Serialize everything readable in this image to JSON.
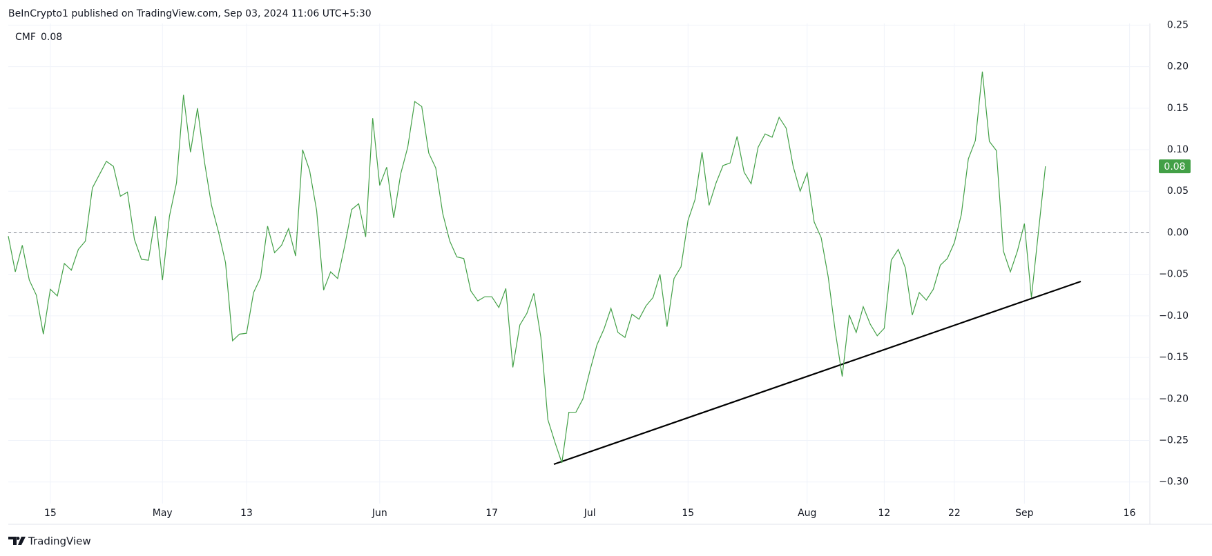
{
  "chart_data": {
    "type": "line",
    "title": "BeInCrypto1 published on TradingView.com, Sep 03, 2024 11:06 UTC+5:30",
    "watermark": "TradingView",
    "categories": [
      null,
      null,
      null,
      null,
      null,
      null,
      "15",
      null,
      null,
      null,
      null,
      null,
      null,
      null,
      null,
      null,
      null,
      null,
      null,
      null,
      null,
      null,
      "May",
      null,
      null,
      null,
      null,
      null,
      null,
      null,
      null,
      null,
      null,
      null,
      "13",
      null,
      null,
      null,
      null,
      null,
      null,
      null,
      null,
      null,
      null,
      null,
      null,
      null,
      null,
      null,
      null,
      null,
      null,
      "Jun",
      null,
      null,
      null,
      null,
      null,
      null,
      null,
      null,
      null,
      null,
      null,
      null,
      null,
      null,
      null,
      "17",
      null,
      null,
      null,
      null,
      null,
      null,
      null,
      null,
      null,
      null,
      null,
      null,
      null,
      "Jul",
      null,
      null,
      null,
      null,
      null,
      null,
      null,
      null,
      null,
      null,
      null,
      null,
      null,
      "15",
      null,
      null,
      null,
      null,
      null,
      null,
      null,
      null,
      null,
      null,
      null,
      null,
      null,
      null,
      null,
      null,
      "Aug",
      null,
      null,
      null,
      null,
      null,
      null,
      null,
      null,
      null,
      null,
      "12",
      null,
      null,
      null,
      null,
      null,
      null,
      null,
      null,
      null,
      "22",
      null,
      null,
      null,
      null,
      null,
      null,
      null,
      null,
      null,
      "Sep",
      null,
      null,
      null,
      null,
      null,
      null,
      null,
      null,
      null,
      null,
      null,
      null,
      null,
      null,
      "16",
      null,
      null
    ],
    "series": [
      {
        "name": "CMF",
        "color": "#43a047",
        "values": [
          -0.004,
          -0.047,
          -0.015,
          -0.057,
          -0.075,
          -0.122,
          -0.068,
          -0.076,
          -0.037,
          -0.045,
          -0.02,
          -0.01,
          0.054,
          0.07,
          0.086,
          0.08,
          0.044,
          0.049,
          -0.008,
          -0.032,
          -0.033,
          0.02,
          -0.057,
          0.02,
          0.06,
          0.166,
          0.097,
          0.15,
          0.085,
          0.033,
          0.001,
          -0.036,
          -0.13,
          -0.122,
          -0.121,
          -0.072,
          -0.054,
          0.008,
          -0.024,
          -0.015,
          0.005,
          -0.028,
          0.1,
          0.075,
          0.027,
          -0.069,
          -0.047,
          -0.055,
          -0.016,
          0.028,
          0.035,
          -0.005,
          0.138,
          0.057,
          0.079,
          0.018,
          0.071,
          0.103,
          0.158,
          0.152,
          0.096,
          0.078,
          0.023,
          -0.01,
          -0.029,
          -0.031,
          -0.07,
          -0.082,
          -0.077,
          -0.077,
          -0.09,
          -0.067,
          -0.162,
          -0.111,
          -0.097,
          -0.073,
          -0.126,
          -0.225,
          -0.252,
          -0.277,
          -0.216,
          -0.216,
          -0.2,
          -0.166,
          -0.135,
          -0.116,
          -0.091,
          -0.12,
          -0.126,
          -0.098,
          -0.104,
          -0.088,
          -0.078,
          -0.05,
          -0.113,
          -0.055,
          -0.041,
          0.015,
          0.04,
          0.097,
          0.033,
          0.06,
          0.081,
          0.084,
          0.116,
          0.073,
          0.059,
          0.103,
          0.119,
          0.115,
          0.139,
          0.126,
          0.08,
          0.05,
          0.072,
          0.013,
          -0.006,
          -0.053,
          -0.118,
          -0.173,
          -0.099,
          -0.12,
          -0.089,
          -0.11,
          -0.124,
          -0.115,
          -0.033,
          -0.02,
          -0.042,
          -0.099,
          -0.072,
          -0.081,
          -0.068,
          -0.039,
          -0.031,
          -0.012,
          0.022,
          0.089,
          0.111,
          0.194,
          0.11,
          0.099,
          -0.022,
          -0.047,
          -0.022,
          0.011,
          -0.078,
          0.001,
          0.08,
          null,
          null,
          null,
          null,
          null,
          null,
          null,
          null,
          null,
          null,
          null,
          null,
          null,
          null
        ]
      }
    ],
    "ylim": [
      -0.326,
      0.252
    ],
    "yticks": [
      {
        "value": -0.3,
        "label": "−0.30"
      },
      {
        "value": -0.25,
        "label": "−0.25"
      },
      {
        "value": -0.2,
        "label": "−0.20"
      },
      {
        "value": -0.15,
        "label": "−0.15"
      },
      {
        "value": -0.1,
        "label": "−0.10"
      },
      {
        "value": -0.05,
        "label": "−0.05"
      },
      {
        "value": 0,
        "label": "0.00"
      },
      {
        "value": 0.05,
        "label": "0.05"
      },
      {
        "value": 0.1,
        "label": "0.10"
      },
      {
        "value": 0.15,
        "label": "0.15"
      },
      {
        "value": 0.2,
        "label": "0.20"
      },
      {
        "value": 0.25,
        "label": "0.25"
      }
    ],
    "hline": 0,
    "grid": true
  }
}
